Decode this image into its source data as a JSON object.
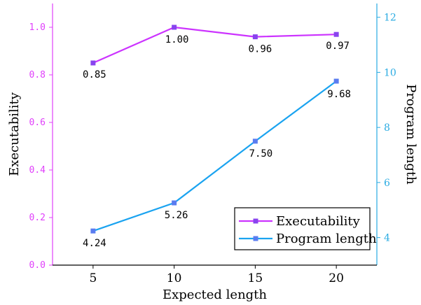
{
  "chart_data": {
    "type": "line",
    "x": [
      5,
      10,
      15,
      20
    ],
    "xlabel": "Expected length",
    "xticks": [
      "5",
      "10",
      "15",
      "20"
    ],
    "xlim": [
      2.5,
      22.5
    ],
    "left_axis": {
      "label": "Executability",
      "ylim": [
        0,
        1.1
      ],
      "ticks": [
        "0.0",
        "0.2",
        "0.4",
        "0.6",
        "0.8",
        "1.0"
      ],
      "tick_values": [
        0,
        0.2,
        0.4,
        0.6,
        0.8,
        1.0
      ],
      "color": "#e040fb"
    },
    "right_axis": {
      "label": "Program length",
      "ylim": [
        3,
        12.5
      ],
      "ticks": [
        "4",
        "6",
        "8",
        "10",
        "12"
      ],
      "tick_values": [
        4,
        6,
        8,
        10,
        12
      ],
      "color": "#29abe2"
    },
    "series": [
      {
        "name": "Executability",
        "axis": "left",
        "values": [
          0.85,
          1.0,
          0.96,
          0.97
        ],
        "data_labels": [
          "0.85",
          "1.00",
          "0.96",
          "0.97"
        ],
        "line_color": "#cc33ff",
        "marker_color": "#8844ee"
      },
      {
        "name": "Program length",
        "axis": "right",
        "values": [
          4.24,
          5.26,
          7.5,
          9.68
        ],
        "data_labels": [
          "4.24",
          "5.26",
          "7.50",
          "9.68"
        ],
        "line_color": "#1aa3f0",
        "marker_color": "#5a7cf0"
      }
    ],
    "legend_position": "bottom-right",
    "grid": false
  }
}
